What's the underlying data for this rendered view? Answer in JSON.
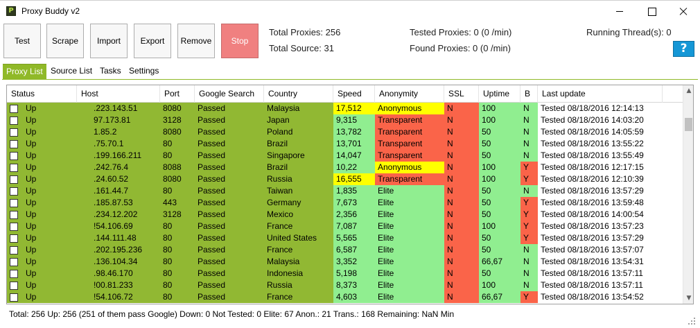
{
  "window": {
    "title": "Proxy Buddy v2",
    "icon_letter": "P"
  },
  "toolbar": {
    "buttons": [
      "Test",
      "Scrape",
      "Import",
      "Export",
      "Remove",
      "Stop"
    ]
  },
  "stats": {
    "total_proxies": "Total Proxies: 256",
    "total_source": "Total Source: 31",
    "tested_proxies": "Tested Proxies: 0 (0 /min)",
    "found_proxies": "Found Proxies: 0 (0 /min)",
    "running_threads": "Running Thread(s): 0"
  },
  "help_label": "?",
  "tabs": [
    "Proxy List",
    "Source List",
    "Tasks",
    "Settings"
  ],
  "grid": {
    "columns": [
      "Status",
      "Host",
      "Port",
      "Google Search",
      "Country",
      "Speed",
      "Anonymity",
      "SSL",
      "Uptime",
      "B",
      "Last update"
    ],
    "rows": [
      [
        "Up",
        ".223.143.51",
        "8080",
        "Passed",
        "Malaysia",
        "17,512",
        "Anonymous",
        "N",
        "100",
        "N",
        "Tested 08/18/2016 12:14:13"
      ],
      [
        "Up",
        "97.173.81",
        "3128",
        "Passed",
        "Japan",
        "9,315",
        "Transparent",
        "N",
        "100",
        "N",
        "Tested 08/18/2016 14:03:20"
      ],
      [
        "Up",
        "1.85.2",
        "8080",
        "Passed",
        "Poland",
        "13,782",
        "Transparent",
        "N",
        "50",
        "N",
        "Tested 08/18/2016 14:05:59"
      ],
      [
        "Up",
        ".75.70.1",
        "80",
        "Passed",
        "Brazil",
        "13,701",
        "Transparent",
        "N",
        "50",
        "N",
        "Tested 08/18/2016 13:55:22"
      ],
      [
        "Up",
        ".199.166.211",
        "80",
        "Passed",
        "Singapore",
        "14,047",
        "Transparent",
        "N",
        "50",
        "N",
        "Tested 08/18/2016 13:55:49"
      ],
      [
        "Up",
        ".242.76.4",
        "8088",
        "Passed",
        "Brazil",
        "10,22",
        "Anonymous",
        "N",
        "100",
        "Y",
        "Tested 08/18/2016 12:17:15"
      ],
      [
        "Up",
        ".24.60.52",
        "8080",
        "Passed",
        "Russia",
        "16,555",
        "Transparent",
        "N",
        "100",
        "Y",
        "Tested 08/18/2016 12:10:39"
      ],
      [
        "Up",
        ".161.44.7",
        "80",
        "Passed",
        "Taiwan",
        "1,835",
        "Elite",
        "N",
        "50",
        "N",
        "Tested 08/18/2016 13:57:29"
      ],
      [
        "Up",
        ".185.87.53",
        "443",
        "Passed",
        "Germany",
        "7,673",
        "Elite",
        "N",
        "50",
        "Y",
        "Tested 08/18/2016 13:59:48"
      ],
      [
        "Up",
        ".234.12.202",
        "3128",
        "Passed",
        "Mexico",
        "2,356",
        "Elite",
        "N",
        "50",
        "Y",
        "Tested 08/18/2016 14:00:54"
      ],
      [
        "Up",
        "!54.106.69",
        "80",
        "Passed",
        "France",
        "7,087",
        "Elite",
        "N",
        "100",
        "Y",
        "Tested 08/18/2016 13:57:23"
      ],
      [
        "Up",
        ".144.111.48",
        "80",
        "Passed",
        "United States",
        "5,565",
        "Elite",
        "N",
        "50",
        "Y",
        "Tested 08/18/2016 13:57:29"
      ],
      [
        "Up",
        ".202.195.236",
        "80",
        "Passed",
        "France",
        "6,587",
        "Elite",
        "N",
        "50",
        "N",
        "Tested 08/18/2016 13:57:07"
      ],
      [
        "Up",
        ".136.104.34",
        "80",
        "Passed",
        "Malaysia",
        "3,352",
        "Elite",
        "N",
        "66,67",
        "N",
        "Tested 08/18/2016 13:54:31"
      ],
      [
        "Up",
        ".98.46.170",
        "80",
        "Passed",
        "Indonesia",
        "5,198",
        "Elite",
        "N",
        "50",
        "N",
        "Tested 08/18/2016 13:57:11"
      ],
      [
        "Up",
        "!00.81.233",
        "80",
        "Passed",
        "Russia",
        "8,373",
        "Elite",
        "N",
        "100",
        "N",
        "Tested 08/18/2016 13:57:11"
      ],
      [
        "Up",
        "!54.106.72",
        "80",
        "Passed",
        "France",
        "4,603",
        "Elite",
        "N",
        "66,67",
        "Y",
        "Tested 08/18/2016 13:54:52"
      ]
    ]
  },
  "statusbar": {
    "text": "Total:  256  Up:  256 (251 of them pass Google)  Down:  0  Not Tested:  0  Elite:  67  Anon.:  21  Trans.:  168  Remaining:  NaN Min"
  },
  "colors": {
    "status_up": "#91b833",
    "good": "#90ee90",
    "bad": "#fa6449",
    "warn": "#ffff00",
    "tab_active": "#90b928",
    "stop_button": "#f08080",
    "help_button": "#1597d6"
  }
}
